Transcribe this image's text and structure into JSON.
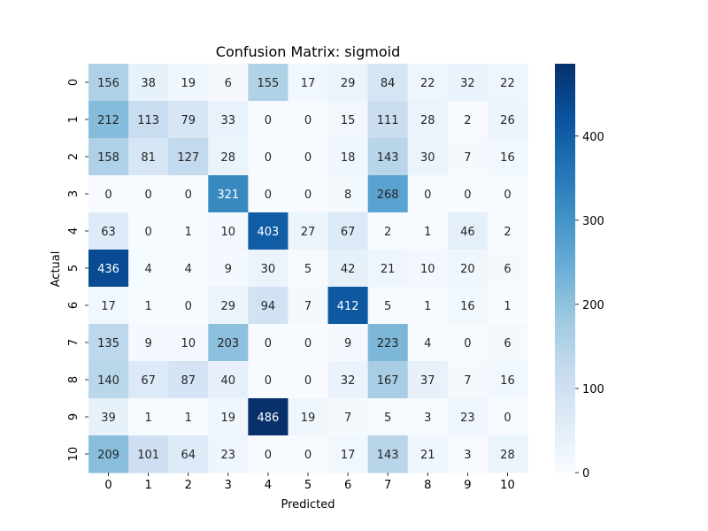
{
  "chart_data": {
    "type": "heatmap",
    "title": "Confusion Matrix: sigmoid",
    "xlabel": "Predicted",
    "ylabel": "Actual",
    "x_categories": [
      "0",
      "1",
      "2",
      "3",
      "4",
      "5",
      "6",
      "7",
      "8",
      "9",
      "10"
    ],
    "y_categories": [
      "0",
      "1",
      "2",
      "3",
      "4",
      "5",
      "6",
      "7",
      "8",
      "9",
      "10"
    ],
    "values": [
      [
        156,
        38,
        19,
        6,
        155,
        17,
        29,
        84,
        22,
        32,
        22
      ],
      [
        212,
        113,
        79,
        33,
        0,
        0,
        15,
        111,
        28,
        2,
        26
      ],
      [
        158,
        81,
        127,
        28,
        0,
        0,
        18,
        143,
        30,
        7,
        16
      ],
      [
        0,
        0,
        0,
        321,
        0,
        0,
        8,
        268,
        0,
        0,
        0
      ],
      [
        63,
        0,
        1,
        10,
        403,
        27,
        67,
        2,
        1,
        46,
        2
      ],
      [
        436,
        4,
        4,
        9,
        30,
        5,
        42,
        21,
        10,
        20,
        6
      ],
      [
        17,
        1,
        0,
        29,
        94,
        7,
        412,
        5,
        1,
        16,
        1
      ],
      [
        135,
        9,
        10,
        203,
        0,
        0,
        9,
        223,
        4,
        0,
        6
      ],
      [
        140,
        67,
        87,
        40,
        0,
        0,
        32,
        167,
        37,
        7,
        16
      ],
      [
        39,
        1,
        1,
        19,
        486,
        19,
        7,
        5,
        3,
        23,
        0
      ],
      [
        209,
        101,
        64,
        23,
        0,
        0,
        17,
        143,
        21,
        3,
        28
      ]
    ],
    "colormap": "Blues",
    "colorbar_range": [
      0,
      486
    ],
    "colorbar_ticks": [
      0,
      100,
      200,
      300,
      400
    ]
  }
}
